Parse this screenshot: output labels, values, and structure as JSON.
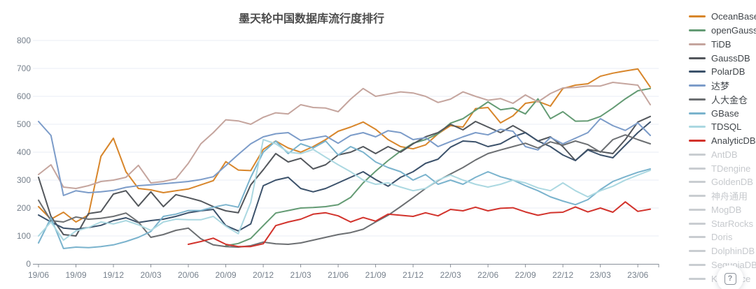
{
  "page": {
    "background": "#ffffff"
  },
  "help_button": {
    "label": "?"
  },
  "legend": {
    "active_text_color": "#40454a",
    "disabled_text_color": "#c6c9cd",
    "disabled_swatch_color": "#c9cdd1"
  },
  "chart_data": {
    "type": "line",
    "title": "墨天轮中国数据库流行度排行",
    "xlabel": "",
    "ylabel": "",
    "ylim": [
      0,
      800
    ],
    "y_ticks": [
      0,
      100,
      200,
      300,
      400,
      500,
      600,
      700,
      800
    ],
    "grid": true,
    "legend_position": "right",
    "axis_label_color": "#76808c",
    "gridline_color": "#e8eef6",
    "axis_line_color": "#8a9099",
    "x": [
      "19/06",
      "19/07",
      "19/08",
      "19/09",
      "19/10",
      "19/11",
      "19/12",
      "20/01",
      "20/02",
      "20/03",
      "20/04",
      "20/05",
      "20/06",
      "20/07",
      "20/08",
      "20/09",
      "20/10",
      "20/11",
      "20/12",
      "21/01",
      "21/02",
      "21/03",
      "21/04",
      "21/05",
      "21/06",
      "21/07",
      "21/08",
      "21/09",
      "21/10",
      "21/11",
      "21/12",
      "22/01",
      "22/02",
      "22/03",
      "22/04",
      "22/05",
      "22/06",
      "22/07",
      "22/08",
      "22/09",
      "22/10",
      "22/11",
      "22/12",
      "23/01",
      "23/02",
      "23/03",
      "23/04",
      "23/05",
      "23/06",
      "23/07"
    ],
    "x_tick_labels": [
      "19/06",
      "19/09",
      "19/12",
      "20/03",
      "20/06",
      "20/09",
      "20/12",
      "21/03",
      "21/06",
      "21/09",
      "21/12",
      "22/03",
      "22/06",
      "22/09",
      "22/12",
      "23/03",
      "23/06"
    ],
    "series": [
      {
        "name": "OceanBase",
        "color": "#d8862b",
        "selected": true,
        "values": [
          205,
          160,
          185,
          150,
          175,
          385,
          450,
          330,
          270,
          265,
          255,
          262,
          268,
          283,
          298,
          366,
          336,
          334,
          410,
          440,
          415,
          400,
          420,
          445,
          475,
          490,
          508,
          482,
          445,
          420,
          412,
          426,
          466,
          495,
          490,
          556,
          560,
          505,
          530,
          575,
          582,
          565,
          628,
          640,
          645,
          672,
          683,
          691,
          698,
          633
        ]
      },
      {
        "name": "openGauss",
        "color": "#649b74",
        "selected": true,
        "values": [
          null,
          null,
          null,
          null,
          null,
          null,
          null,
          null,
          null,
          null,
          null,
          null,
          null,
          null,
          null,
          65,
          73,
          91,
          137,
          182,
          191,
          200,
          202,
          205,
          212,
          238,
          290,
          332,
          370,
          404,
          432,
          445,
          466,
          504,
          520,
          550,
          580,
          552,
          558,
          537,
          591,
          520,
          545,
          511,
          512,
          528,
          558,
          591,
          620,
          628
        ]
      },
      {
        "name": "TiDB",
        "color": "#c5a59e",
        "selected": true,
        "values": [
          320,
          355,
          275,
          270,
          280,
          295,
          300,
          310,
          353,
          290,
          295,
          305,
          360,
          430,
          470,
          516,
          512,
          500,
          525,
          541,
          537,
          570,
          560,
          558,
          545,
          590,
          628,
          600,
          608,
          616,
          612,
          600,
          578,
          590,
          616,
          600,
          586,
          592,
          575,
          605,
          580,
          610,
          630,
          632,
          637,
          637,
          650,
          645,
          640,
          570
        ]
      },
      {
        "name": "GaussDB",
        "color": "#53575c",
        "selected": true,
        "values": [
          310,
          170,
          105,
          100,
          180,
          187,
          250,
          262,
          207,
          258,
          205,
          248,
          237,
          225,
          205,
          190,
          183,
          283,
          337,
          395,
          365,
          378,
          340,
          355,
          390,
          400,
          420,
          395,
          420,
          400,
          430,
          455,
          470,
          500,
          480,
          510,
          490,
          470,
          495,
          470,
          440,
          455,
          420,
          370,
          410,
          402,
          395,
          445,
          508,
          528
        ]
      },
      {
        "name": "PolarDB",
        "color": "#3c526b",
        "selected": true,
        "values": [
          175,
          150,
          128,
          124,
          130,
          138,
          155,
          165,
          148,
          155,
          160,
          170,
          183,
          190,
          195,
          137,
          118,
          143,
          280,
          300,
          310,
          270,
          258,
          270,
          290,
          310,
          330,
          302,
          278,
          310,
          330,
          360,
          375,
          418,
          440,
          437,
          420,
          430,
          455,
          470,
          440,
          420,
          390,
          370,
          408,
          390,
          380,
          425,
          470,
          508
        ]
      },
      {
        "name": "达梦",
        "color": "#7c9cc9",
        "selected": true,
        "values": [
          510,
          460,
          245,
          262,
          255,
          258,
          263,
          274,
          280,
          283,
          287,
          291,
          295,
          302,
          312,
          352,
          392,
          430,
          455,
          466,
          470,
          442,
          450,
          458,
          432,
          460,
          470,
          455,
          477,
          470,
          445,
          452,
          420,
          438,
          455,
          470,
          462,
          482,
          475,
          420,
          408,
          453,
          430,
          450,
          470,
          520,
          495,
          478,
          505,
          460
        ]
      },
      {
        "name": "人大金仓",
        "color": "#6c6f72",
        "selected": true,
        "values": [
          228,
          155,
          150,
          168,
          160,
          163,
          170,
          182,
          150,
          95,
          105,
          120,
          128,
          90,
          68,
          62,
          60,
          65,
          78,
          72,
          70,
          75,
          85,
          95,
          105,
          112,
          124,
          150,
          174,
          205,
          237,
          270,
          298,
          322,
          345,
          372,
          395,
          408,
          420,
          432,
          415,
          437,
          425,
          440,
          427,
          400,
          445,
          462,
          445,
          430
        ]
      },
      {
        "name": "GBase",
        "color": "#7ab3cd",
        "selected": true,
        "values": [
          75,
          165,
          55,
          60,
          58,
          62,
          68,
          80,
          95,
          116,
          170,
          178,
          191,
          191,
          203,
          212,
          203,
          310,
          400,
          440,
          395,
          430,
          415,
          440,
          390,
          420,
          400,
          365,
          345,
          330,
          300,
          320,
          285,
          300,
          285,
          310,
          330,
          312,
          300,
          280,
          262,
          240,
          225,
          212,
          230,
          266,
          295,
          312,
          328,
          340
        ]
      },
      {
        "name": "TDSQL",
        "color": "#abd8e1",
        "selected": true,
        "values": [
          100,
          150,
          85,
          118,
          130,
          150,
          143,
          155,
          140,
          120,
          150,
          160,
          158,
          158,
          170,
          135,
          108,
          220,
          445,
          430,
          400,
          395,
          410,
          382,
          355,
          330,
          300,
          285,
          290,
          275,
          262,
          270,
          300,
          318,
          300,
          285,
          275,
          285,
          300,
          290,
          272,
          262,
          290,
          262,
          240,
          262,
          278,
          300,
          318,
          335
        ]
      },
      {
        "name": "AnalyticDB",
        "color": "#d2332c",
        "selected": true,
        "values": [
          null,
          null,
          null,
          null,
          null,
          null,
          null,
          null,
          null,
          null,
          null,
          null,
          70,
          80,
          92,
          70,
          62,
          62,
          72,
          137,
          150,
          160,
          178,
          183,
          172,
          150,
          166,
          153,
          178,
          174,
          170,
          183,
          172,
          195,
          190,
          203,
          190,
          199,
          201,
          186,
          174,
          183,
          185,
          204,
          186,
          200,
          185,
          222,
          188,
          196
        ]
      },
      {
        "name": "AntDB",
        "color": "#c9cdd1",
        "selected": false,
        "values": []
      },
      {
        "name": "TDengine",
        "color": "#c9cdd1",
        "selected": false,
        "values": []
      },
      {
        "name": "GoldenDB",
        "color": "#c9cdd1",
        "selected": false,
        "values": []
      },
      {
        "name": "神舟通用",
        "color": "#c9cdd1",
        "selected": false,
        "values": []
      },
      {
        "name": "MogDB",
        "color": "#c9cdd1",
        "selected": false,
        "values": []
      },
      {
        "name": "StarRocks",
        "color": "#c9cdd1",
        "selected": false,
        "values": []
      },
      {
        "name": "Doris",
        "color": "#c9cdd1",
        "selected": false,
        "values": []
      },
      {
        "name": "DolphinDB",
        "color": "#c9cdd1",
        "selected": false,
        "values": []
      },
      {
        "name": "SequoiaDB",
        "color": "#c9cdd1",
        "selected": false,
        "values": []
      },
      {
        "name": "Kyligence",
        "color": "#c9cdd1",
        "selected": false,
        "values": []
      }
    ]
  }
}
